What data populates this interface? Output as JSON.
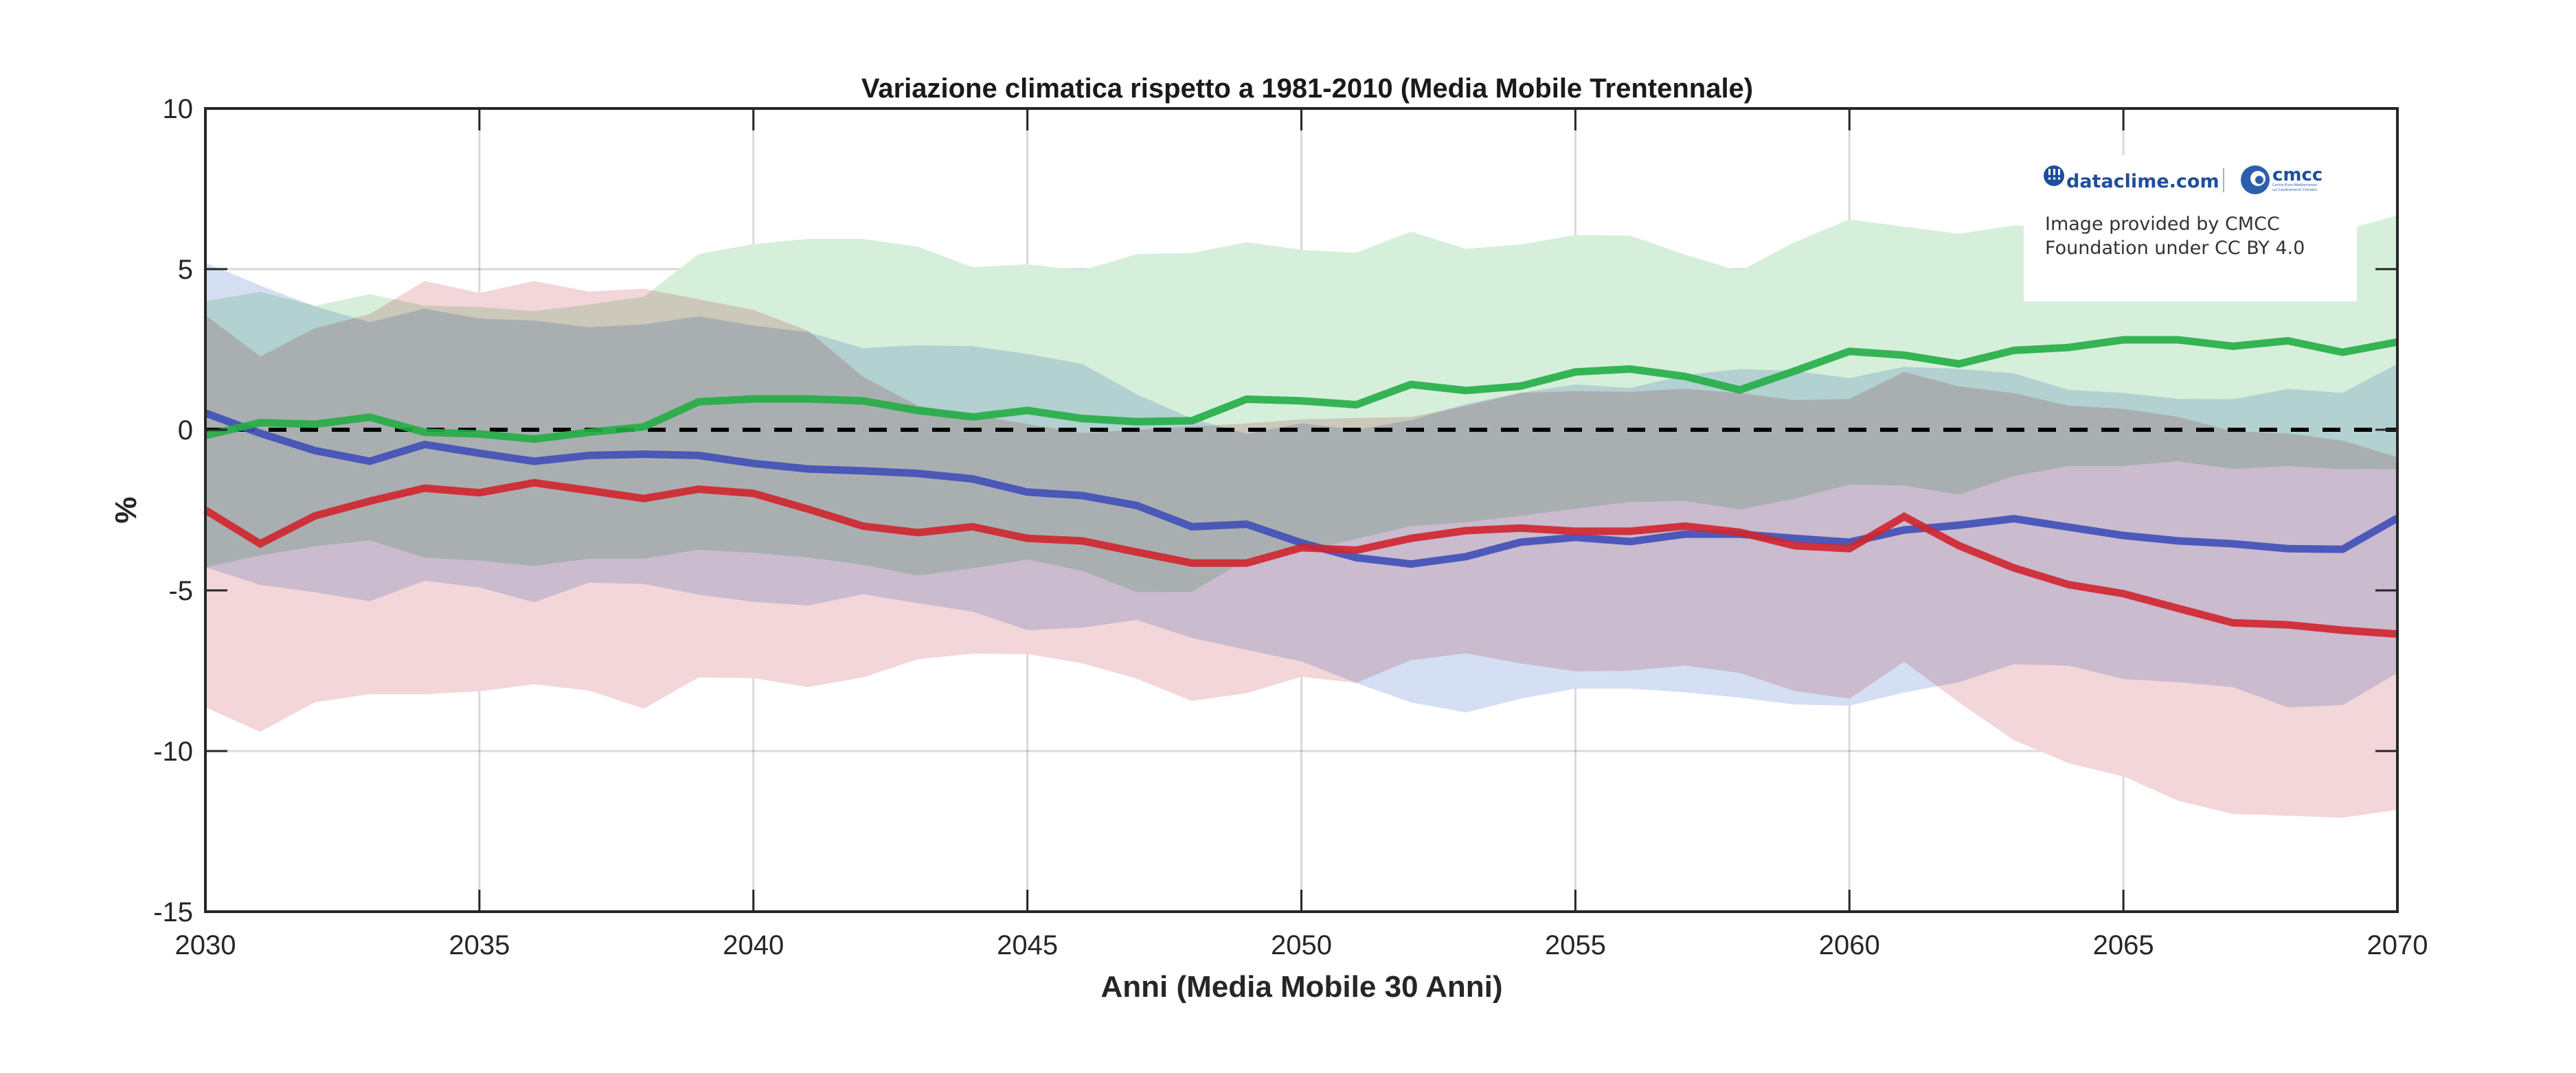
{
  "chart_data": {
    "type": "area",
    "title": "Variazione climatica rispetto a 1981-2010 (Media Mobile Trentennale)",
    "xlabel": "Anni (Media Mobile 30 Anni)",
    "ylabel": "%",
    "xlim": [
      2030,
      2070
    ],
    "ylim": [
      -15,
      10
    ],
    "xticks": [
      2030,
      2035,
      2040,
      2045,
      2050,
      2055,
      2060,
      2065,
      2070
    ],
    "yticks": [
      10,
      5,
      0,
      -5,
      -10,
      -15
    ],
    "grid": true,
    "reference_line": {
      "y": 0,
      "style": "dashed",
      "color": "#000000"
    },
    "x": [
      2030,
      2031,
      2032,
      2033,
      2034,
      2035,
      2036,
      2037,
      2038,
      2039,
      2040,
      2041,
      2042,
      2043,
      2044,
      2045,
      2046,
      2047,
      2048,
      2049,
      2050,
      2051,
      2052,
      2053,
      2054,
      2055,
      2056,
      2057,
      2058,
      2059,
      2060,
      2061,
      2062,
      2063,
      2064,
      2065,
      2066,
      2067,
      2068,
      2069,
      2070
    ],
    "series": [
      {
        "name": "blue",
        "line_color": "#3f4fb8",
        "band_color": "#d4dff3",
        "values": [
          0.52,
          -0.11,
          -0.65,
          -0.98,
          -0.46,
          -0.73,
          -0.98,
          -0.8,
          -0.76,
          -0.8,
          -1.05,
          -1.22,
          -1.28,
          -1.36,
          -1.53,
          -1.94,
          -2.05,
          -2.36,
          -3.02,
          -2.94,
          -3.52,
          -3.98,
          -4.18,
          -3.95,
          -3.5,
          -3.35,
          -3.48,
          -3.25,
          -3.25,
          -3.38,
          -3.5,
          -3.12,
          -2.97,
          -2.77,
          -3.03,
          -3.29,
          -3.46,
          -3.55,
          -3.7,
          -3.72,
          -2.75
        ],
        "upper": [
          5.2,
          4.49,
          3.84,
          3.35,
          3.77,
          3.46,
          3.4,
          3.19,
          3.28,
          3.53,
          3.24,
          3.04,
          2.54,
          2.63,
          2.6,
          2.36,
          2.05,
          1.1,
          0.35,
          -0.12,
          0.2,
          0.0,
          0.3,
          0.8,
          1.15,
          1.41,
          1.3,
          1.7,
          1.89,
          1.83,
          1.61,
          1.96,
          1.89,
          1.76,
          1.24,
          1.15,
          0.96,
          0.95,
          1.27,
          1.15,
          2.05
        ],
        "lower": [
          -4.28,
          -4.83,
          -5.06,
          -5.34,
          -4.7,
          -4.91,
          -5.37,
          -4.76,
          -4.8,
          -5.13,
          -5.36,
          -5.47,
          -5.12,
          -5.4,
          -5.66,
          -6.24,
          -6.16,
          -5.92,
          -6.48,
          -6.85,
          -7.21,
          -7.88,
          -8.49,
          -8.8,
          -8.37,
          -8.06,
          -8.06,
          -8.17,
          -8.34,
          -8.55,
          -8.59,
          -8.18,
          -7.86,
          -7.3,
          -7.34,
          -7.76,
          -7.86,
          -8.01,
          -8.64,
          -8.57,
          -7.57
        ]
      },
      {
        "name": "green",
        "line_color": "#22ad45",
        "band_color": "#d6efdb",
        "values": [
          -0.18,
          0.22,
          0.17,
          0.39,
          -0.08,
          -0.13,
          -0.29,
          -0.08,
          0.09,
          0.87,
          0.96,
          0.96,
          0.9,
          0.6,
          0.4,
          0.6,
          0.35,
          0.25,
          0.28,
          0.95,
          0.9,
          0.78,
          1.41,
          1.22,
          1.36,
          1.8,
          1.89,
          1.66,
          1.24,
          1.83,
          2.44,
          2.32,
          2.05,
          2.47,
          2.56,
          2.8,
          2.8,
          2.6,
          2.77,
          2.41,
          2.73
        ],
        "upper": [
          4.0,
          4.29,
          3.86,
          4.22,
          3.86,
          3.82,
          3.69,
          3.9,
          4.14,
          5.47,
          5.78,
          5.94,
          5.94,
          5.7,
          5.06,
          5.15,
          4.96,
          5.47,
          5.5,
          5.84,
          5.6,
          5.51,
          6.17,
          5.63,
          5.77,
          6.06,
          6.04,
          5.45,
          4.94,
          5.84,
          6.55,
          6.32,
          6.1,
          6.36,
          6.3,
          6.3,
          6.3,
          6.25,
          6.25,
          6.2,
          6.67
        ],
        "lower": [
          -4.28,
          -3.91,
          -3.63,
          -3.44,
          -3.98,
          -4.07,
          -4.24,
          -4.01,
          -4.01,
          -3.74,
          -3.83,
          -3.98,
          -4.2,
          -4.54,
          -4.31,
          -4.04,
          -4.39,
          -5.06,
          -5.04,
          -4.05,
          -3.79,
          -3.4,
          -3.0,
          -2.88,
          -2.68,
          -2.46,
          -2.25,
          -2.22,
          -2.48,
          -2.15,
          -1.71,
          -1.74,
          -2.02,
          -1.44,
          -1.13,
          -1.13,
          -0.98,
          -1.22,
          -1.13,
          -1.23,
          -1.22
        ]
      },
      {
        "name": "red",
        "line_color": "#d0252e",
        "band_color": "#f3d6d9",
        "values": [
          -2.5,
          -3.55,
          -2.68,
          -2.22,
          -1.82,
          -1.96,
          -1.65,
          -1.89,
          -2.14,
          -1.85,
          -1.98,
          -2.47,
          -3.0,
          -3.2,
          -3.02,
          -3.38,
          -3.46,
          -3.81,
          -4.15,
          -4.15,
          -3.67,
          -3.75,
          -3.38,
          -3.14,
          -3.06,
          -3.16,
          -3.16,
          -3.0,
          -3.19,
          -3.61,
          -3.7,
          -2.7,
          -3.61,
          -4.3,
          -4.82,
          -5.1,
          -5.56,
          -6.01,
          -6.07,
          -6.24,
          -6.36
        ],
        "upper": [
          3.57,
          2.28,
          3.16,
          3.6,
          4.63,
          4.26,
          4.63,
          4.3,
          4.39,
          4.06,
          3.73,
          3.08,
          1.65,
          0.75,
          0.47,
          0.18,
          -0.1,
          0.0,
          0.1,
          0.2,
          0.32,
          0.37,
          0.4,
          0.74,
          1.15,
          1.2,
          1.18,
          1.28,
          1.14,
          0.92,
          0.96,
          1.8,
          1.35,
          1.14,
          0.75,
          0.65,
          0.4,
          -0.05,
          -0.11,
          -0.34,
          -0.85
        ],
        "lower": [
          -8.64,
          -9.4,
          -8.48,
          -8.23,
          -8.23,
          -8.14,
          -7.92,
          -8.12,
          -8.68,
          -7.71,
          -7.73,
          -8.01,
          -7.71,
          -7.14,
          -6.97,
          -6.98,
          -7.27,
          -7.75,
          -8.44,
          -8.2,
          -7.69,
          -7.88,
          -7.17,
          -6.96,
          -7.27,
          -7.52,
          -7.5,
          -7.34,
          -7.57,
          -8.13,
          -8.37,
          -7.22,
          -8.49,
          -9.66,
          -10.38,
          -10.79,
          -11.55,
          -11.96,
          -12.01,
          -12.08,
          -11.83
        ]
      }
    ],
    "legend": "none",
    "annotations": {
      "logo_left": "dataclime.com",
      "logo_right": "cmcc",
      "logo_right_subtitle_1": "Centro Euro-Mediterraneo",
      "logo_right_subtitle_2": "sui Cambiamenti Climatici",
      "attribution_line_1": "Image provided by CMCC",
      "attribution_line_2": "Foundation under CC BY 4.0"
    }
  }
}
